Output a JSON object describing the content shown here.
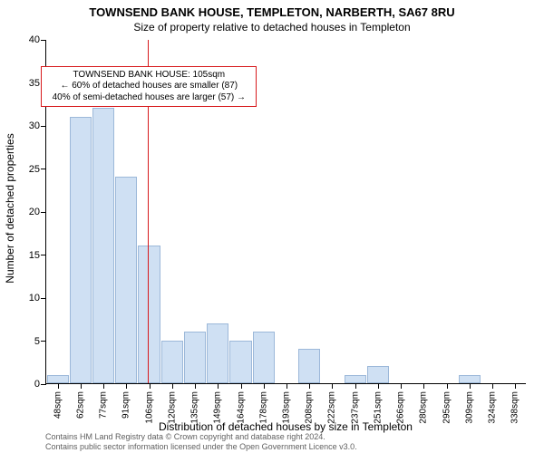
{
  "title_main": "TOWNSEND BANK HOUSE, TEMPLETON, NARBERTH, SA67 8RU",
  "title_sub": "Size of property relative to detached houses in Templeton",
  "ylabel": "Number of detached properties",
  "xlabel": "Distribution of detached houses by size in Templeton",
  "footer1": "Contains HM Land Registry data © Crown copyright and database right 2024.",
  "footer2": "Contains public sector information licensed under the Open Government Licence v3.0.",
  "chart": {
    "type": "histogram",
    "background_color": "#ffffff",
    "axis_color": "#000000",
    "bar_fill": "#cfe0f3",
    "bar_stroke": "#9cb8d9",
    "refline_color": "#d7191c",
    "annot_border": "#d7191c",
    "ylim": [
      0,
      40
    ],
    "ytick_step": 5,
    "categories": [
      "48sqm",
      "62sqm",
      "77sqm",
      "91sqm",
      "106sqm",
      "120sqm",
      "135sqm",
      "149sqm",
      "164sqm",
      "178sqm",
      "193sqm",
      "208sqm",
      "222sqm",
      "237sqm",
      "251sqm",
      "266sqm",
      "280sqm",
      "295sqm",
      "309sqm",
      "324sqm",
      "338sqm"
    ],
    "values": [
      1,
      31,
      32,
      24,
      16,
      5,
      6,
      7,
      5,
      6,
      0,
      4,
      0,
      1,
      2,
      0,
      0,
      0,
      1,
      0,
      0
    ],
    "bar_rel_width": 0.96,
    "refline_at_index": 3.95,
    "annot_lines": [
      "TOWNSEND BANK HOUSE: 105sqm",
      "← 60% of detached houses are smaller (87)",
      "40% of semi-detached houses are larger (57) →"
    ],
    "annot_top_value": 37,
    "title_fontsize": 13,
    "label_fontsize": 12,
    "tick_fontsize": 10
  }
}
